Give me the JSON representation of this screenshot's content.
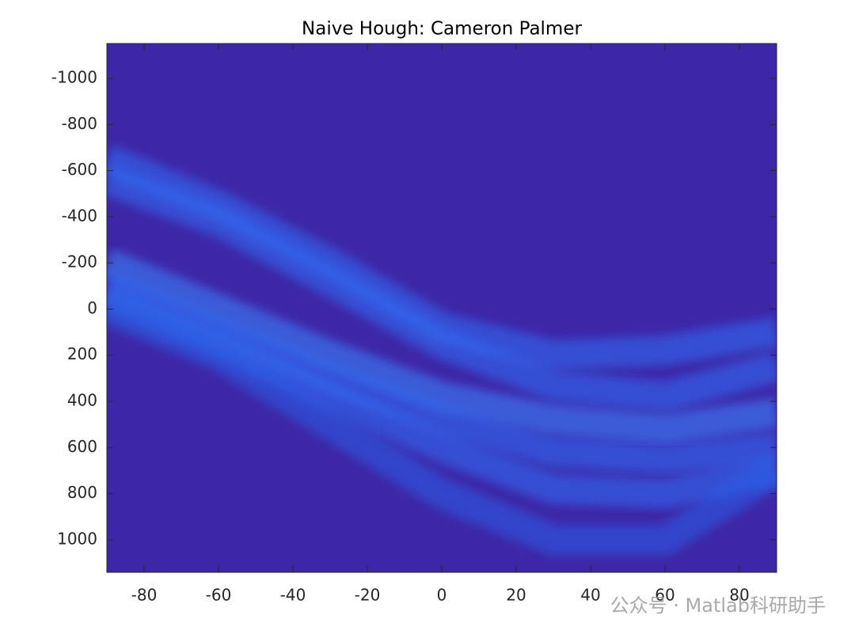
{
  "chart_data": {
    "type": "heatmap",
    "title": "Naive Hough: Cameron Palmer",
    "xlim": [
      -90,
      90
    ],
    "xticks": [
      -80,
      -60,
      -40,
      -20,
      0,
      20,
      40,
      60,
      80
    ],
    "ylim": [
      -1151,
      1141
    ],
    "yticks": [
      -1000,
      -800,
      -600,
      -400,
      -200,
      0,
      200,
      400,
      600,
      800,
      1000
    ],
    "y_reversed": true,
    "background": "#3e26a8",
    "series": [
      {
        "color": "#2f6ff5",
        "x": [
          -90,
          -60,
          -30,
          0,
          30,
          60,
          90
        ],
        "values": [
          -650,
          -450,
          -200,
          80,
          200,
          180,
          100
        ]
      },
      {
        "color": "#2f6ff5",
        "x": [
          -90,
          -60,
          -30,
          0,
          30,
          60,
          90
        ],
        "values": [
          -560,
          -380,
          -120,
          150,
          330,
          380,
          250
        ]
      },
      {
        "color": "#3a86ff",
        "x": [
          -90,
          -60,
          -30,
          0,
          30,
          60,
          90
        ],
        "values": [
          -200,
          0,
          200,
          380,
          480,
          520,
          450
        ]
      },
      {
        "color": "#2f6ff5",
        "x": [
          -90,
          -60,
          -30,
          0,
          30,
          60,
          90
        ],
        "values": [
          -100,
          100,
          300,
          480,
          620,
          650,
          600
        ]
      },
      {
        "color": "#2f6ff5",
        "x": [
          -90,
          -60,
          -30,
          0,
          30,
          60,
          90
        ],
        "values": [
          -50,
          150,
          380,
          600,
          780,
          800,
          700
        ]
      },
      {
        "color": "#2a5ee8",
        "x": [
          -90,
          -60,
          -30,
          0,
          30,
          60,
          90
        ],
        "values": [
          0,
          200,
          500,
          800,
          1000,
          1000,
          700
        ]
      }
    ]
  },
  "watermark": "公众号 · Matlab科研助手"
}
